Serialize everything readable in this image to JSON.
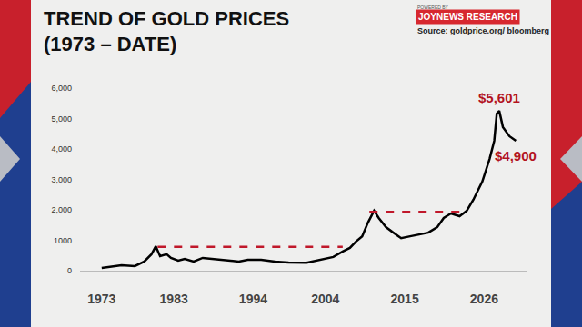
{
  "chart_data": {
    "type": "line",
    "title": "TREND OF GOLD PRICES\n(1973 – DATE)",
    "powered_by": "POWERED BY",
    "brand": "JOYNEWS RESEARCH",
    "source": "Source: goldprice.org/ bloomberg",
    "series": [
      {
        "color": "#000000",
        "line_style": "solid",
        "x": [
          1973,
          1974.5,
          1975.75,
          1977.6,
          1978.9,
          1979.9,
          1980.5,
          1981.1,
          1982,
          1982.6,
          1983.6,
          1984.5,
          1985.75,
          1987,
          1988.25,
          1990.1,
          1992,
          1993.25,
          1995.1,
          1997,
          1998.9,
          2001.4,
          2002.6,
          2003.9,
          2005.1,
          2006.4,
          2007.4,
          2008.25,
          2009.1,
          2009.9,
          2010.75,
          2011.4,
          2012.4,
          2013.25,
          2014.5,
          2015.75,
          2017,
          2018.25,
          2019.5,
          2020.4,
          2021.4,
          2022.6,
          2023.6,
          2024.5,
          2025.75,
          2026.75,
          2027.4,
          2027.75,
          2028.1,
          2028.6,
          2029.5,
          2030.4
        ],
        "values": [
          90,
          150,
          180,
          150,
          300,
          540,
          800,
          480,
          540,
          420,
          330,
          390,
          300,
          420,
          390,
          330,
          300,
          360,
          360,
          300,
          270,
          260,
          320,
          390,
          450,
          630,
          750,
          960,
          1130,
          1580,
          1970,
          1730,
          1430,
          1280,
          1070,
          1130,
          1190,
          1250,
          1430,
          1730,
          1880,
          1790,
          1970,
          2330,
          2930,
          3670,
          4270,
          5160,
          5250,
          4720,
          4420,
          4270
        ]
      },
      {
        "color": "#c0182a",
        "line_style": "dash",
        "x": [
          1980.75,
          2006.4
        ],
        "values": [
          780,
          780
        ]
      },
      {
        "color": "#c0182a",
        "line_style": "dash",
        "x": [
          2010.1,
          2022.9
        ],
        "values": [
          1930,
          1930
        ]
      }
    ],
    "annotations": [
      "$5,601",
      "$4,900"
    ],
    "xlim": [
      1970,
      2032
    ],
    "xticks": [
      1973,
      1983,
      1994,
      2004,
      2015,
      2026
    ],
    "ylim": [
      0,
      6000
    ],
    "yticks": [
      0,
      1000,
      {
        "value": 2000,
        "label": "2,000"
      },
      {
        "value": 3000,
        "label": "3,000"
      },
      {
        "value": 4000,
        "label": "4,000"
      },
      {
        "value": 5000,
        "label": "5,000"
      },
      {
        "value": 6000,
        "label": "6,000"
      }
    ],
    "grid": false
  }
}
